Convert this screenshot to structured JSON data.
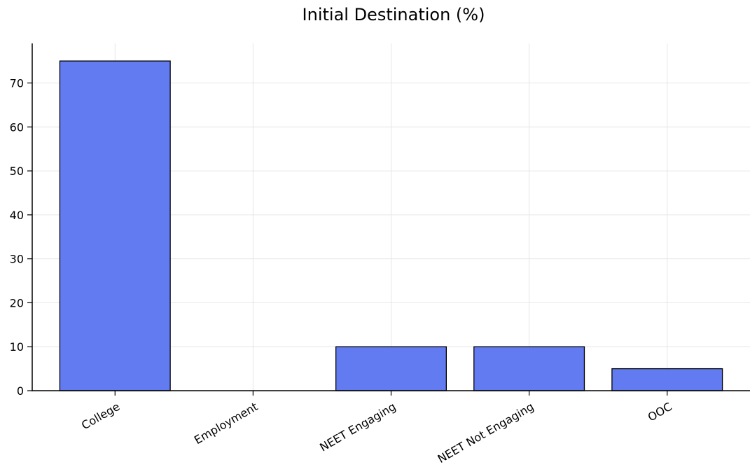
{
  "chart_data": {
    "type": "bar",
    "title": "Initial Destination (%)",
    "xlabel": "",
    "ylabel": "",
    "categories": [
      "College",
      "Employment",
      "NEET Engaging",
      "NEET Not Engaging",
      "OOC"
    ],
    "values": [
      75,
      0,
      10,
      10,
      5
    ],
    "ylim": [
      0,
      79
    ],
    "yticks": [
      0,
      10,
      20,
      30,
      40,
      50,
      60,
      70
    ],
    "grid": true,
    "bar_color": "#637bf1",
    "edge_color": "#000000"
  }
}
